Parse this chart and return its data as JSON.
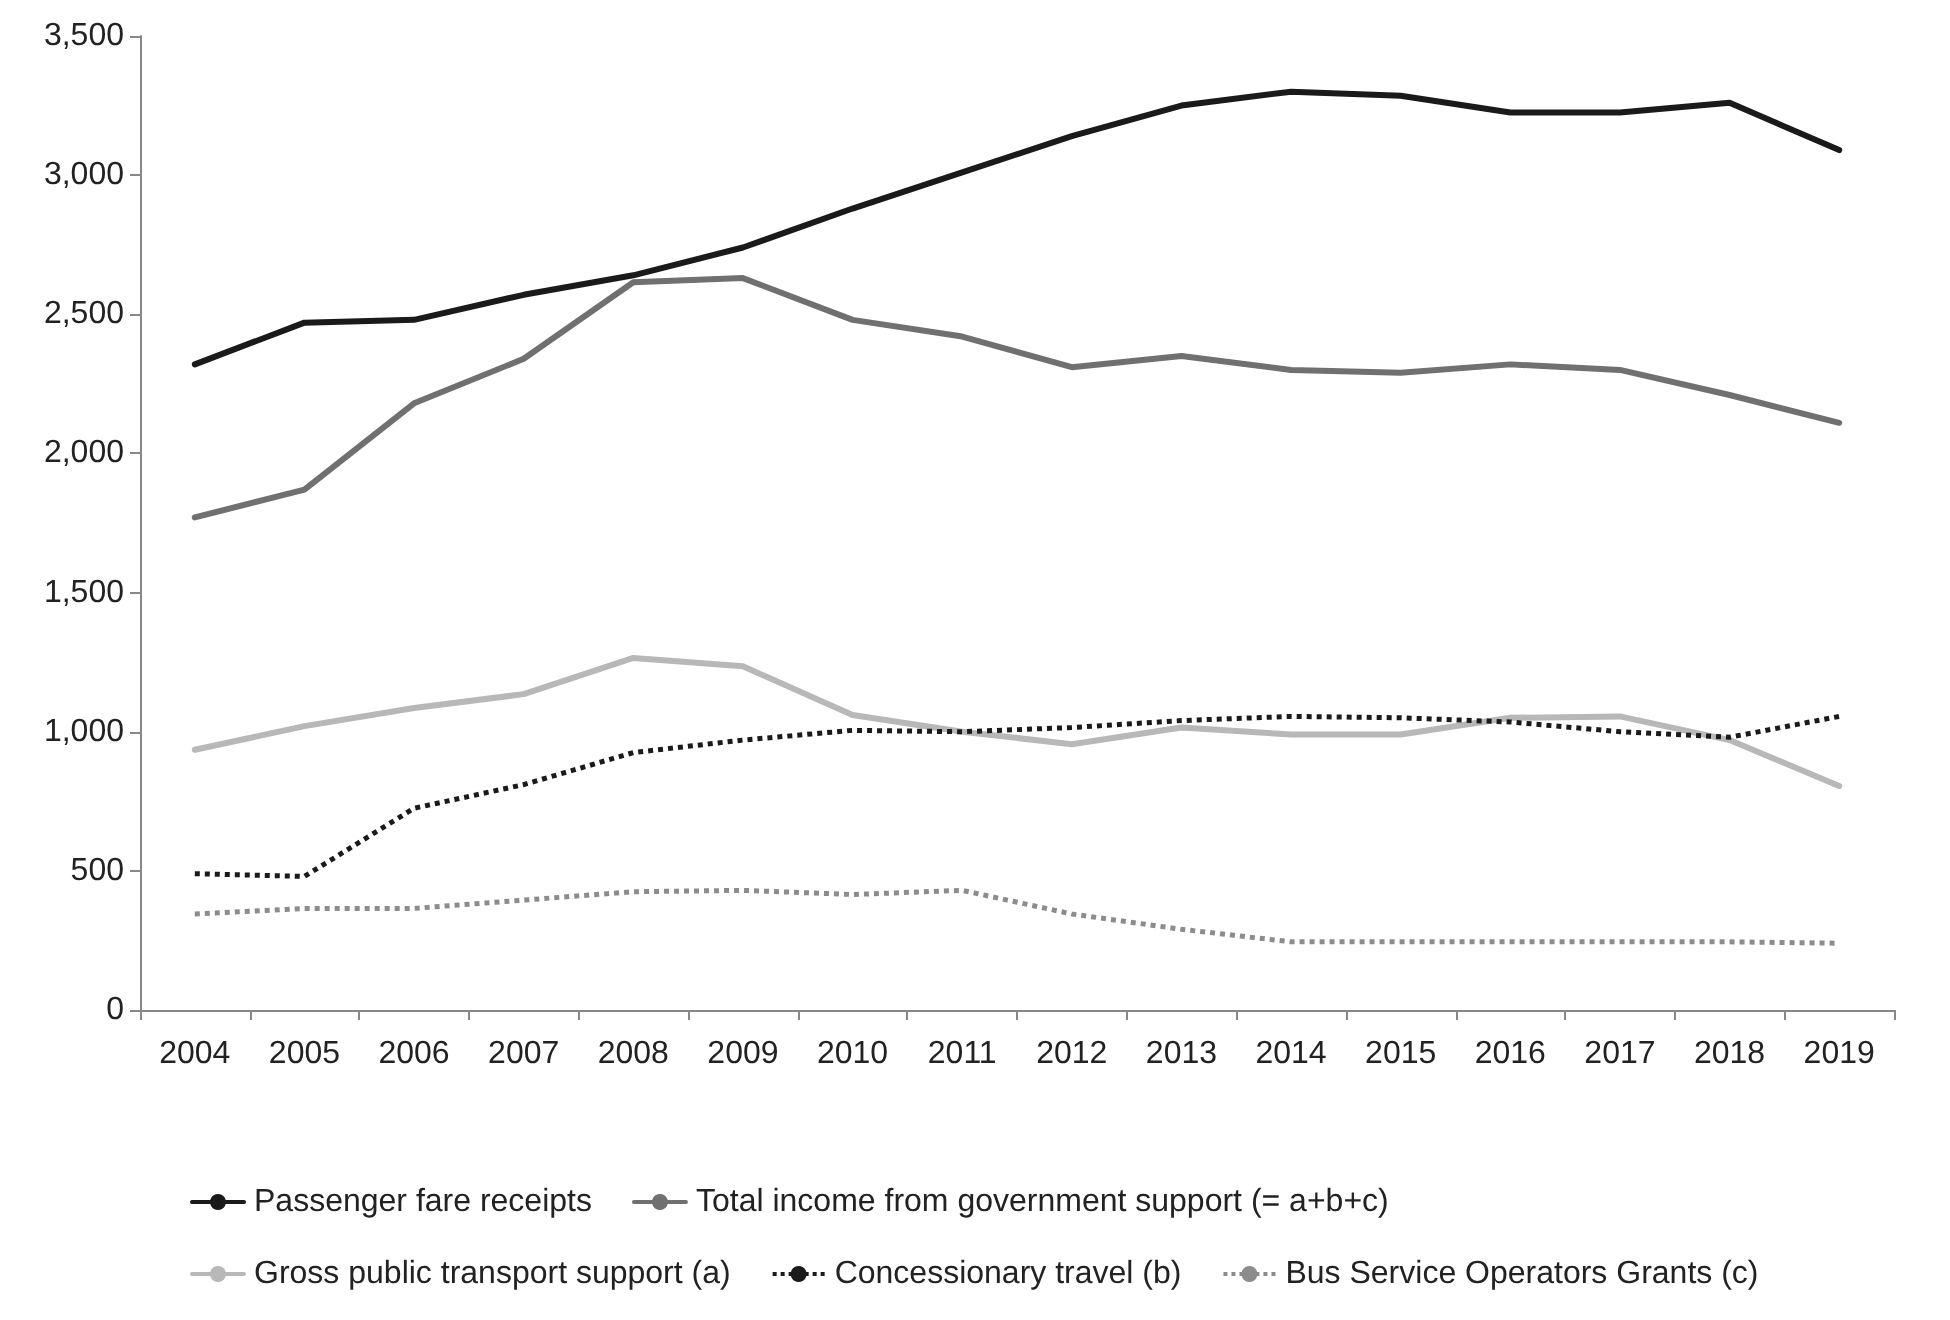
{
  "chart_data": {
    "type": "line",
    "categories": [
      "2004",
      "2005",
      "2006",
      "2007",
      "2008",
      "2009",
      "2010",
      "2011",
      "2012",
      "2013",
      "2014",
      "2015",
      "2016",
      "2017",
      "2018",
      "2019"
    ],
    "ylim": [
      0,
      3500
    ],
    "yticks": [
      0,
      500,
      {
        "value": 1000,
        "label": "1,000"
      },
      {
        "value": 1500,
        "label": "1,500"
      },
      {
        "value": 2000,
        "label": "2,000"
      },
      {
        "value": 2500,
        "label": "2,500"
      },
      {
        "value": 3000,
        "label": "3,000"
      },
      {
        "value": 3500,
        "label": "3,500"
      }
    ],
    "grid": false,
    "legend": "bottom",
    "marker": "none",
    "series": [
      {
        "name": "Passenger fare receipts",
        "color": "#1a1a1a",
        "line_style": "solid",
        "values": [
          2320,
          2470,
          2480,
          2570,
          2640,
          2740,
          2880,
          3010,
          3140,
          3250,
          3300,
          3285,
          3225,
          3225,
          3260,
          3090
        ]
      },
      {
        "name": "Total income from government support (= a+b+c)",
        "color": "#707070",
        "line_style": "solid",
        "values": [
          1770,
          1870,
          2180,
          2340,
          2615,
          2630,
          2480,
          2420,
          2310,
          2350,
          2300,
          2290,
          2320,
          2300,
          2210,
          2110
        ]
      },
      {
        "name": "Gross public transport support (a)",
        "color": "#b8b8b8",
        "line_style": "solid",
        "values": [
          935,
          1020,
          1085,
          1135,
          1265,
          1235,
          1060,
          1000,
          955,
          1015,
          990,
          990,
          1050,
          1055,
          970,
          805
        ]
      },
      {
        "name": "Concessionary travel (b)",
        "color": "#1a1a1a",
        "line_style": "dotted",
        "values": [
          490,
          480,
          725,
          810,
          925,
          970,
          1005,
          1000,
          1015,
          1040,
          1055,
          1050,
          1035,
          1000,
          980,
          1055
        ]
      },
      {
        "name": "Bus Service Operators Grants (c)",
        "color": "#8c8c8c",
        "line_style": "dotted",
        "values": [
          345,
          365,
          365,
          395,
          425,
          430,
          415,
          430,
          345,
          290,
          245,
          245,
          245,
          245,
          245,
          240
        ]
      }
    ]
  }
}
